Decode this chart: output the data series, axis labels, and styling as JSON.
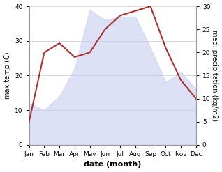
{
  "months": [
    "Jan",
    "Feb",
    "Mar",
    "Apr",
    "May",
    "Jun",
    "Jul",
    "Aug",
    "Sep",
    "Oct",
    "Nov",
    "Dec"
  ],
  "max_temp": [
    12,
    10,
    14,
    22,
    39,
    36,
    37,
    37,
    28,
    18,
    21,
    16
  ],
  "precipitation": [
    5,
    20,
    22,
    19,
    20,
    25,
    28,
    29,
    30,
    21,
    14,
    10
  ],
  "temp_fill_color": "#c5cef0",
  "temp_fill_alpha": 0.6,
  "precip_color": "#b03030",
  "temp_ylim": [
    0,
    40
  ],
  "precip_ylim": [
    0,
    30
  ],
  "temp_yticks": [
    0,
    10,
    20,
    30,
    40
  ],
  "precip_yticks": [
    0,
    5,
    10,
    15,
    20,
    25,
    30
  ],
  "xlabel": "date (month)",
  "ylabel_left": "max temp (C)",
  "ylabel_right": "med. precipitation (kg/m2)",
  "background_color": "#ffffff",
  "grid_color": "#cccccc",
  "xlabel_fontsize": 8,
  "ylabel_fontsize": 7,
  "tick_fontsize": 6.5
}
